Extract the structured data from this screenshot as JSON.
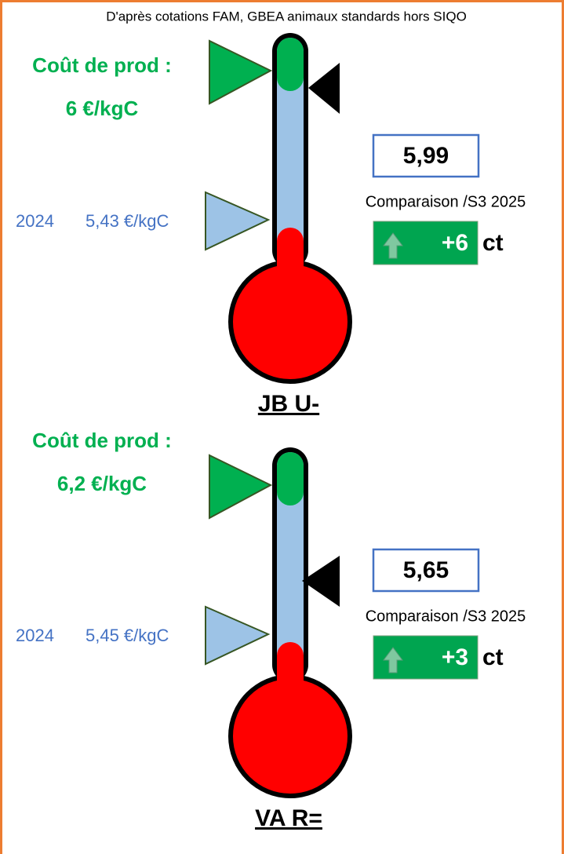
{
  "header": {
    "title": "D'après cotations FAM, GBEA animaux standards hors SIQO"
  },
  "panels": [
    {
      "cost_label": "Coût de prod :",
      "cost_value": "6 €/kgC",
      "ref_year": "2024",
      "ref_value": "5,43 €/kgC",
      "price": "5,99",
      "comparison": "Comparaison /S3 2025",
      "change": "+6",
      "unit": "ct",
      "name": "JB U-"
    },
    {
      "cost_label": "Coût de prod :",
      "cost_value": "6,2 €/kgC",
      "ref_year": "2024",
      "ref_value": "5,45 €/kgC",
      "price": "5,65",
      "comparison": "Comparaison /S3 2025",
      "change": "+3",
      "unit": "ct",
      "name": "VA R="
    }
  ]
}
